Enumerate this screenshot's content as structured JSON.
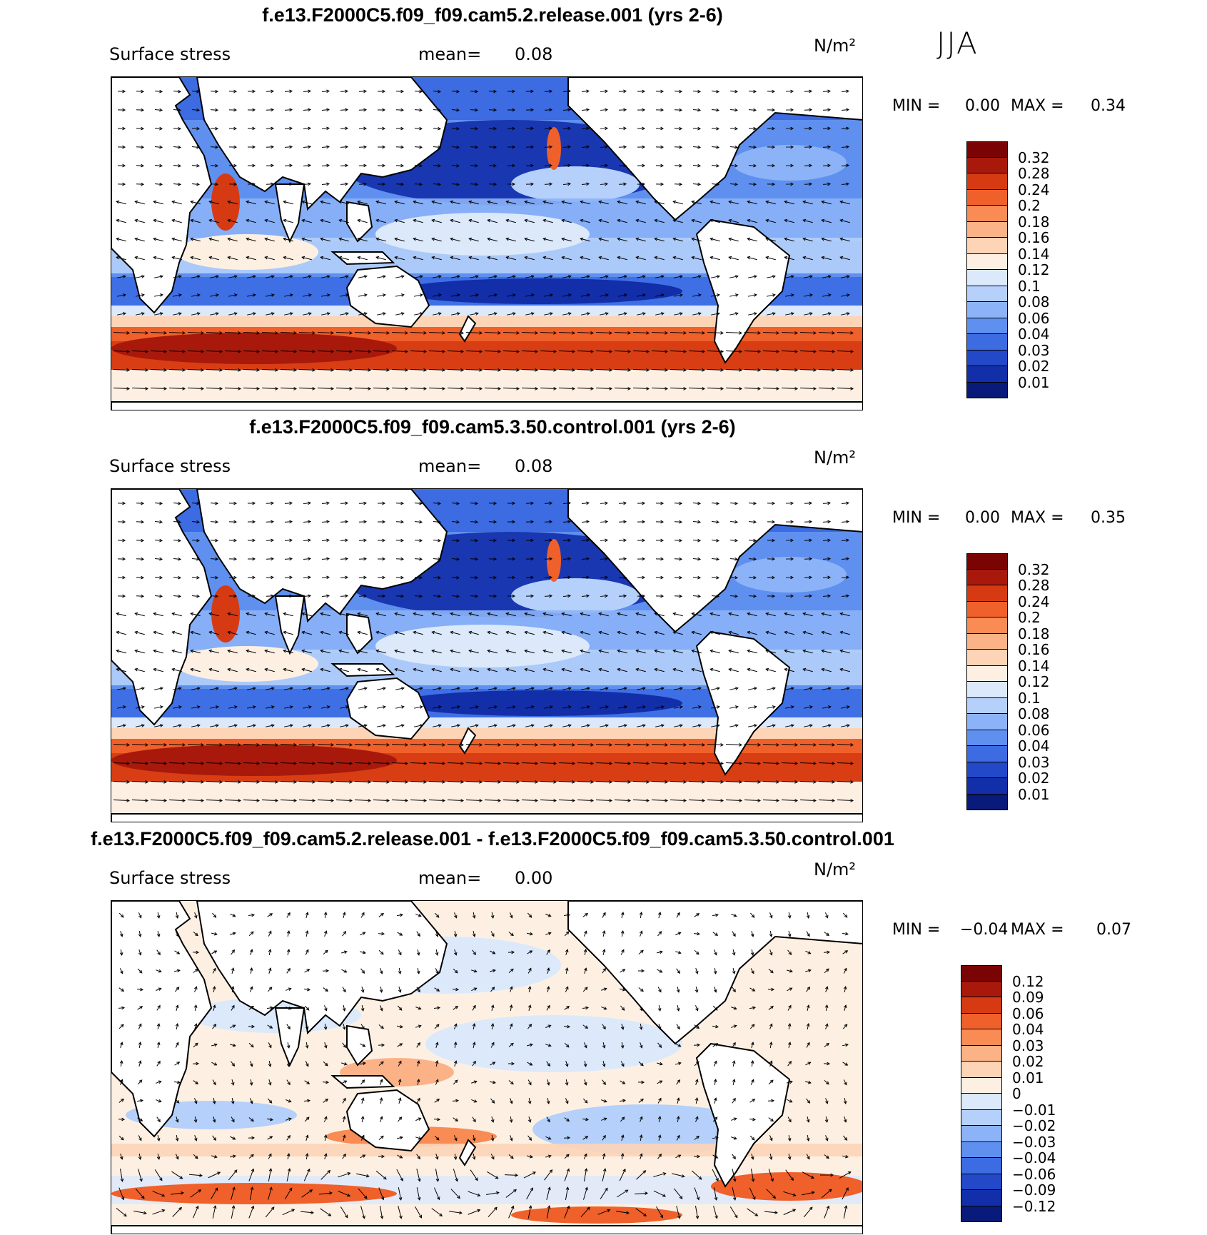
{
  "season": "JJA",
  "units": "N/m²",
  "panels": [
    {
      "title": "f.e13.F2000C5.f09_f09.cam5.2.release.001 (yrs 2-6)",
      "variable": "Surface stress",
      "mean_label": "mean=",
      "mean_value": "0.08",
      "min_label": "MIN =",
      "min_value": "0.00",
      "max_label": "MAX =",
      "max_value": "0.34",
      "colorbar_labels": [
        "0.32",
        "0.28",
        "0.24",
        "0.2",
        "0.18",
        "0.16",
        "0.14",
        "0.12",
        "0.1",
        "0.08",
        "0.06",
        "0.04",
        "0.03",
        "0.02",
        "0.01"
      ],
      "colorbar_colors": [
        "#7a0403",
        "#a8190c",
        "#d63a12",
        "#f0602a",
        "#f88c54",
        "#fbb287",
        "#fdd4b6",
        "#fdf0e3",
        "#dbe9fb",
        "#b4d0fb",
        "#8cb3f7",
        "#5f90ef",
        "#3c6be2",
        "#2349c9",
        "#122ea8",
        "#081a7a"
      ],
      "field": "absolute"
    },
    {
      "title": "f.e13.F2000C5.f09_f09.cam5.3.50.control.001 (yrs 2-6)",
      "variable": "Surface stress",
      "mean_label": "mean=",
      "mean_value": "0.08",
      "min_label": "MIN =",
      "min_value": "0.00",
      "max_label": "MAX =",
      "max_value": "0.35",
      "colorbar_labels": [
        "0.32",
        "0.28",
        "0.24",
        "0.2",
        "0.18",
        "0.16",
        "0.14",
        "0.12",
        "0.1",
        "0.08",
        "0.06",
        "0.04",
        "0.03",
        "0.02",
        "0.01"
      ],
      "colorbar_colors": [
        "#7a0403",
        "#a8190c",
        "#d63a12",
        "#f0602a",
        "#f88c54",
        "#fbb287",
        "#fdd4b6",
        "#fdf0e3",
        "#dbe9fb",
        "#b4d0fb",
        "#8cb3f7",
        "#5f90ef",
        "#3c6be2",
        "#2349c9",
        "#122ea8",
        "#081a7a"
      ],
      "field": "absolute"
    },
    {
      "title": "f.e13.F2000C5.f09_f09.cam5.2.release.001 - f.e13.F2000C5.f09_f09.cam5.3.50.control.001",
      "variable": "Surface stress",
      "mean_label": "mean=",
      "mean_value": "0.00",
      "min_label": "MIN =",
      "min_value": "−0.04",
      "max_label": "MAX =",
      "max_value": "0.07",
      "colorbar_labels": [
        "0.12",
        "0.09",
        "0.06",
        "0.04",
        "0.03",
        "0.02",
        "0.01",
        "0",
        "−0.01",
        "−0.02",
        "−0.03",
        "−0.04",
        "−0.06",
        "−0.09",
        "−0.12"
      ],
      "colorbar_colors": [
        "#7a0403",
        "#a8190c",
        "#d63a12",
        "#f0602a",
        "#f88c54",
        "#fbb287",
        "#fdd4b6",
        "#fdf0e3",
        "#dbe9fb",
        "#b4d0fb",
        "#8cb3f7",
        "#5f90ef",
        "#3c6be2",
        "#2349c9",
        "#122ea8",
        "#081a7a"
      ],
      "field": "difference"
    }
  ]
}
